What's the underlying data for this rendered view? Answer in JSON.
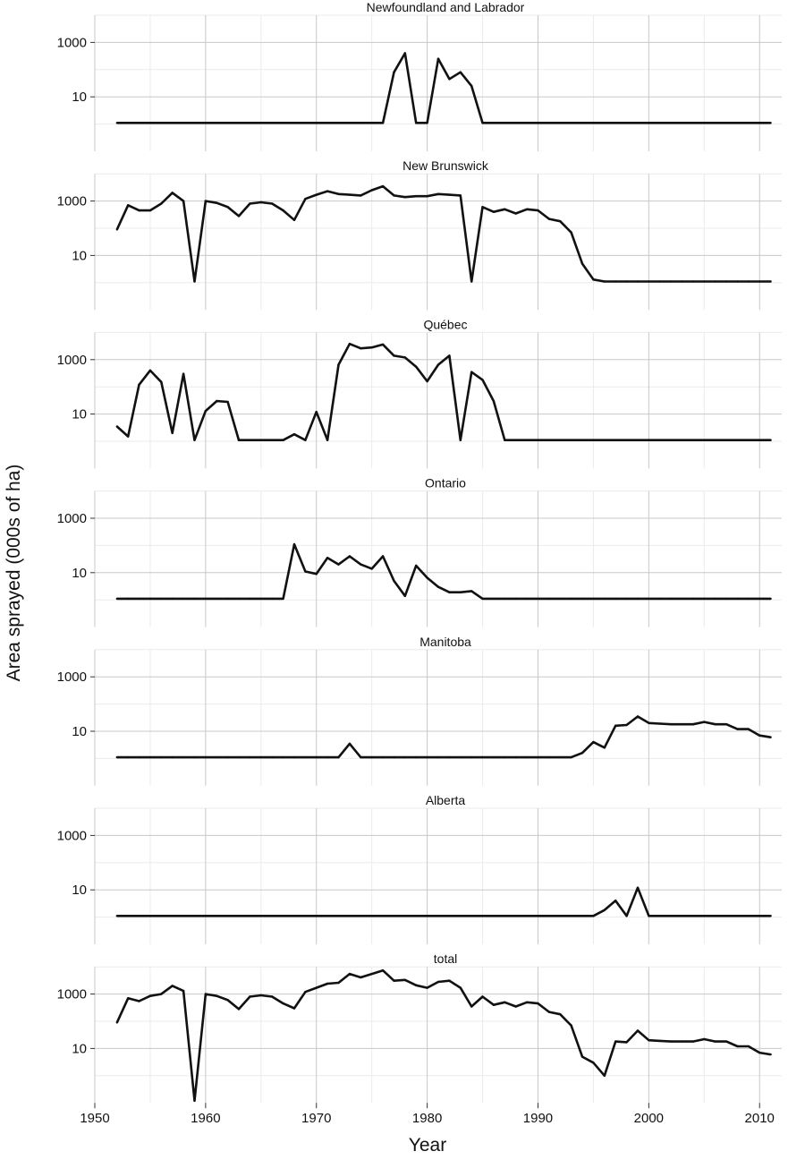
{
  "chart_data": {
    "type": "line",
    "xlabel": "Year",
    "ylabel": "Area sprayed (000s of ha)",
    "y_scale": "log",
    "x_ticks": [
      1950,
      1960,
      1970,
      1980,
      1990,
      2000,
      2010
    ],
    "y_ticks": [
      10,
      1000
    ],
    "y_tick_labels": [
      "10",
      "1000"
    ],
    "xlim": [
      1950,
      2012
    ],
    "ylim": [
      0.1,
      10000
    ],
    "grid": true,
    "panels": [
      {
        "title": "Newfoundland and Labrador",
        "x": [
          1952,
          1953,
          1954,
          1955,
          1956,
          1957,
          1958,
          1959,
          1960,
          1961,
          1962,
          1963,
          1964,
          1965,
          1966,
          1967,
          1968,
          1969,
          1970,
          1971,
          1972,
          1973,
          1974,
          1975,
          1976,
          1977,
          1978,
          1979,
          1980,
          1981,
          1982,
          1983,
          1984,
          1985,
          1986,
          1987,
          1988,
          1989,
          1990,
          1991,
          1992,
          1993,
          1994,
          1995,
          1996,
          1997,
          1998,
          1999,
          2000,
          2001,
          2002,
          2003,
          2004,
          2005,
          2006,
          2007,
          2008,
          2009,
          2010,
          2011
        ],
        "y": [
          1.1,
          1.1,
          1.1,
          1.1,
          1.1,
          1.1,
          1.1,
          1.1,
          1.1,
          1.1,
          1.1,
          1.1,
          1.1,
          1.1,
          1.1,
          1.1,
          1.1,
          1.1,
          1.1,
          1.1,
          1.1,
          1.1,
          1.1,
          1.1,
          1.1,
          80,
          400,
          1.1,
          1.1,
          250,
          45,
          80,
          25,
          1.1,
          1.1,
          1.1,
          1.1,
          1.1,
          1.1,
          1.1,
          1.1,
          1.1,
          1.1,
          1.1,
          1.1,
          1.1,
          1.1,
          1.1,
          1.1,
          1.1,
          1.1,
          1.1,
          1.1,
          1.1,
          1.1,
          1.1,
          1.1,
          1.1,
          1.1,
          1.1
        ]
      },
      {
        "title": "New Brunswick",
        "x": [
          1952,
          1953,
          1954,
          1955,
          1956,
          1957,
          1958,
          1959,
          1960,
          1961,
          1962,
          1963,
          1964,
          1965,
          1966,
          1967,
          1968,
          1969,
          1970,
          1971,
          1972,
          1973,
          1974,
          1975,
          1976,
          1977,
          1978,
          1979,
          1980,
          1981,
          1982,
          1983,
          1984,
          1985,
          1986,
          1987,
          1988,
          1989,
          1990,
          1991,
          1992,
          1993,
          1994,
          1995,
          1996,
          1997,
          1998,
          1999,
          2000,
          2001,
          2002,
          2003,
          2004,
          2005,
          2006,
          2007,
          2008,
          2009,
          2010,
          2011
        ],
        "y": [
          90,
          700,
          450,
          450,
          800,
          2000,
          1000,
          1.1,
          1000,
          850,
          600,
          280,
          800,
          900,
          800,
          450,
          200,
          1200,
          1700,
          2300,
          1800,
          1700,
          1600,
          2500,
          3500,
          1600,
          1400,
          1500,
          1500,
          1800,
          1700,
          1600,
          1.1,
          600,
          400,
          500,
          350,
          500,
          450,
          220,
          180,
          70,
          5,
          1.3,
          1.1,
          1.1,
          1.1,
          1.1,
          1.1,
          1.1,
          1.1,
          1.1,
          1.1,
          1.1,
          1.1,
          1.1,
          1.1,
          1.1,
          1.1,
          1.1
        ]
      },
      {
        "title": "Québec",
        "x": [
          1952,
          1953,
          1954,
          1955,
          1956,
          1957,
          1958,
          1959,
          1960,
          1961,
          1962,
          1963,
          1964,
          1965,
          1966,
          1967,
          1968,
          1969,
          1970,
          1971,
          1972,
          1973,
          1974,
          1975,
          1976,
          1977,
          1978,
          1979,
          1980,
          1981,
          1982,
          1983,
          1984,
          1985,
          1986,
          1987,
          1988,
          1989,
          1990,
          1991,
          1992,
          1993,
          1994,
          1995,
          1996,
          1997,
          1998,
          1999,
          2000,
          2001,
          2002,
          2003,
          2004,
          2005,
          2006,
          2007,
          2008,
          2009,
          2010,
          2011
        ],
        "y": [
          3.5,
          1.5,
          120,
          400,
          150,
          2,
          300,
          1.1,
          13,
          30,
          28,
          1.1,
          1.1,
          1.1,
          1.1,
          1.1,
          1.8,
          1.1,
          12,
          1.1,
          650,
          3800,
          2600,
          2800,
          3600,
          1400,
          1200,
          550,
          160,
          650,
          1400,
          1.1,
          350,
          180,
          30,
          1.1,
          1.1,
          1.1,
          1.1,
          1.1,
          1.1,
          1.1,
          1.1,
          1.1,
          1.1,
          1.1,
          1.1,
          1.1,
          1.1,
          1.1,
          1.1,
          1.1,
          1.1,
          1.1,
          1.1,
          1.1,
          1.1,
          1.1,
          1.1,
          1.1
        ]
      },
      {
        "title": "Ontario",
        "x": [
          1952,
          1953,
          1954,
          1955,
          1956,
          1957,
          1958,
          1959,
          1960,
          1961,
          1962,
          1963,
          1964,
          1965,
          1966,
          1967,
          1968,
          1969,
          1970,
          1971,
          1972,
          1973,
          1974,
          1975,
          1976,
          1977,
          1978,
          1979,
          1980,
          1981,
          1982,
          1983,
          1984,
          1985,
          1986,
          1987,
          1988,
          1989,
          1990,
          1991,
          1992,
          1993,
          1994,
          1995,
          1996,
          1997,
          1998,
          1999,
          2000,
          2001,
          2002,
          2003,
          2004,
          2005,
          2006,
          2007,
          2008,
          2009,
          2010,
          2011
        ],
        "y": [
          1.1,
          1.1,
          1.1,
          1.1,
          1.1,
          1.1,
          1.1,
          1.1,
          1.1,
          1.1,
          1.1,
          1.1,
          1.1,
          1.1,
          1.1,
          1.1,
          110,
          11,
          9,
          35,
          20,
          40,
          20,
          14,
          40,
          5,
          1.4,
          18,
          6.5,
          3,
          1.9,
          1.9,
          2.1,
          1.1,
          1.1,
          1.1,
          1.1,
          1.1,
          1.1,
          1.1,
          1.1,
          1.1,
          1.1,
          1.1,
          1.1,
          1.1,
          1.1,
          1.1,
          1.1,
          1.1,
          1.1,
          1.1,
          1.1,
          1.1,
          1.1,
          1.1,
          1.1,
          1.1,
          1.1,
          1.1
        ]
      },
      {
        "title": "Manitoba",
        "x": [
          1952,
          1953,
          1954,
          1955,
          1956,
          1957,
          1958,
          1959,
          1960,
          1961,
          1962,
          1963,
          1964,
          1965,
          1966,
          1967,
          1968,
          1969,
          1970,
          1971,
          1972,
          1973,
          1974,
          1975,
          1976,
          1977,
          1978,
          1979,
          1980,
          1981,
          1982,
          1983,
          1984,
          1985,
          1986,
          1987,
          1988,
          1989,
          1990,
          1991,
          1992,
          1993,
          1994,
          1995,
          1996,
          1997,
          1998,
          1999,
          2000,
          2001,
          2002,
          2003,
          2004,
          2005,
          2006,
          2007,
          2008,
          2009,
          2010,
          2011
        ],
        "y": [
          1.1,
          1.1,
          1.1,
          1.1,
          1.1,
          1.1,
          1.1,
          1.1,
          1.1,
          1.1,
          1.1,
          1.1,
          1.1,
          1.1,
          1.1,
          1.1,
          1.1,
          1.1,
          1.1,
          1.1,
          1.1,
          3.5,
          1.1,
          1.1,
          1.1,
          1.1,
          1.1,
          1.1,
          1.1,
          1.1,
          1.1,
          1.1,
          1.1,
          1.1,
          1.1,
          1.1,
          1.1,
          1.1,
          1.1,
          1.1,
          1.1,
          1.1,
          1.6,
          4,
          2.5,
          16,
          17,
          35,
          20,
          19,
          18,
          18,
          18,
          22,
          18,
          18,
          12,
          12,
          7,
          6
        ]
      },
      {
        "title": "Alberta",
        "x": [
          1952,
          1953,
          1954,
          1955,
          1956,
          1957,
          1958,
          1959,
          1960,
          1961,
          1962,
          1963,
          1964,
          1965,
          1966,
          1967,
          1968,
          1969,
          1970,
          1971,
          1972,
          1973,
          1974,
          1975,
          1976,
          1977,
          1978,
          1979,
          1980,
          1981,
          1982,
          1983,
          1984,
          1985,
          1986,
          1987,
          1988,
          1989,
          1990,
          1991,
          1992,
          1993,
          1994,
          1995,
          1996,
          1997,
          1998,
          1999,
          2000,
          2001,
          2002,
          2003,
          2004,
          2005,
          2006,
          2007,
          2008,
          2009,
          2010,
          2011
        ],
        "y": [
          1.1,
          1.1,
          1.1,
          1.1,
          1.1,
          1.1,
          1.1,
          1.1,
          1.1,
          1.1,
          1.1,
          1.1,
          1.1,
          1.1,
          1.1,
          1.1,
          1.1,
          1.1,
          1.1,
          1.1,
          1.1,
          1.1,
          1.1,
          1.1,
          1.1,
          1.1,
          1.1,
          1.1,
          1.1,
          1.1,
          1.1,
          1.1,
          1.1,
          1.1,
          1.1,
          1.1,
          1.1,
          1.1,
          1.1,
          1.1,
          1.1,
          1.1,
          1.1,
          1.1,
          1.8,
          4,
          1.1,
          12,
          1.1,
          1.1,
          1.1,
          1.1,
          1.1,
          1.1,
          1.1,
          1.1,
          1.1,
          1.1,
          1.1,
          1.1
        ]
      },
      {
        "title": "total",
        "x": [
          1952,
          1953,
          1954,
          1955,
          1956,
          1957,
          1958,
          1959,
          1960,
          1961,
          1962,
          1963,
          1964,
          1965,
          1966,
          1967,
          1968,
          1969,
          1970,
          1971,
          1972,
          1973,
          1974,
          1975,
          1976,
          1977,
          1978,
          1979,
          1980,
          1981,
          1982,
          1983,
          1984,
          1985,
          1986,
          1987,
          1988,
          1989,
          1990,
          1991,
          1992,
          1993,
          1994,
          1995,
          1996,
          1997,
          1998,
          1999,
          2000,
          2001,
          2002,
          2003,
          2004,
          2005,
          2006,
          2007,
          2008,
          2009,
          2010,
          2011
        ],
        "y": [
          90,
          700,
          550,
          850,
          1000,
          2000,
          1300,
          0.12,
          1000,
          850,
          600,
          280,
          800,
          900,
          800,
          450,
          300,
          1200,
          1700,
          2400,
          2600,
          5500,
          4100,
          5500,
          7400,
          3100,
          3300,
          2100,
          1700,
          2800,
          3100,
          1700,
          350,
          800,
          400,
          500,
          350,
          500,
          450,
          220,
          180,
          70,
          5,
          3,
          1,
          18,
          17,
          45,
          20,
          19,
          18,
          18,
          18,
          22,
          18,
          18,
          12,
          12,
          7,
          6
        ]
      }
    ]
  }
}
